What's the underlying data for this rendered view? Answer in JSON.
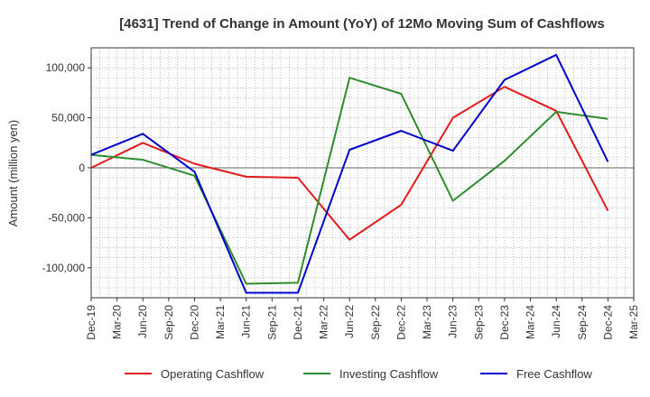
{
  "chart_data": {
    "type": "line",
    "title": "[4631]  Trend of Change in Amount (YoY) of 12Mo Moving Sum of Cashflows",
    "xlabel": "",
    "ylabel": "Amount (million yen)",
    "ylim": [
      -130000,
      120000
    ],
    "yticks": [
      100000,
      50000,
      0,
      -50000,
      -100000
    ],
    "ytick_labels": [
      "100,000",
      "50,000",
      "0",
      "-50,000",
      "-100,000"
    ],
    "categories": [
      "Dec-19",
      "Mar-20",
      "Jun-20",
      "Sep-20",
      "Dec-20",
      "Mar-21",
      "Jun-21",
      "Sep-21",
      "Dec-21",
      "Mar-22",
      "Jun-22",
      "Sep-22",
      "Dec-22",
      "Mar-23",
      "Jun-23",
      "Sep-23",
      "Dec-23",
      "Mar-24",
      "Jun-24",
      "Sep-24",
      "Dec-24",
      "Mar-25"
    ],
    "grid": true,
    "legend_position": "bottom",
    "series": [
      {
        "name": "Operating Cashflow",
        "color": "#e41a1c",
        "points": [
          [
            "Dec-19",
            0
          ],
          [
            "Jun-20",
            25000
          ],
          [
            "Dec-20",
            4000
          ],
          [
            "Jun-21",
            -9000
          ],
          [
            "Dec-21",
            -10000
          ],
          [
            "Jun-22",
            -72000
          ],
          [
            "Dec-22",
            -37000
          ],
          [
            "Jun-23",
            50000
          ],
          [
            "Dec-23",
            81000
          ],
          [
            "Jun-24",
            57000
          ],
          [
            "Dec-24",
            -43000
          ]
        ]
      },
      {
        "name": "Investing Cashflow",
        "color": "#2e8b2e",
        "points": [
          [
            "Dec-19",
            13000
          ],
          [
            "Jun-20",
            8000
          ],
          [
            "Dec-20",
            -8000
          ],
          [
            "Jun-21",
            -116000
          ],
          [
            "Dec-21",
            -115000
          ],
          [
            "Jun-22",
            90000
          ],
          [
            "Dec-22",
            74000
          ],
          [
            "Jun-23",
            -33000
          ],
          [
            "Dec-23",
            7000
          ],
          [
            "Jun-24",
            56000
          ],
          [
            "Dec-24",
            49000
          ]
        ]
      },
      {
        "name": "Free Cashflow",
        "color": "#0000cc",
        "points": [
          [
            "Dec-19",
            13000
          ],
          [
            "Jun-20",
            34000
          ],
          [
            "Dec-20",
            -4000
          ],
          [
            "Jun-21",
            -125000
          ],
          [
            "Dec-21",
            -125000
          ],
          [
            "Jun-22",
            18000
          ],
          [
            "Dec-22",
            37000
          ],
          [
            "Jun-23",
            17000
          ],
          [
            "Dec-23",
            88000
          ],
          [
            "Jun-24",
            113000
          ],
          [
            "Dec-24",
            6000
          ]
        ]
      }
    ]
  }
}
